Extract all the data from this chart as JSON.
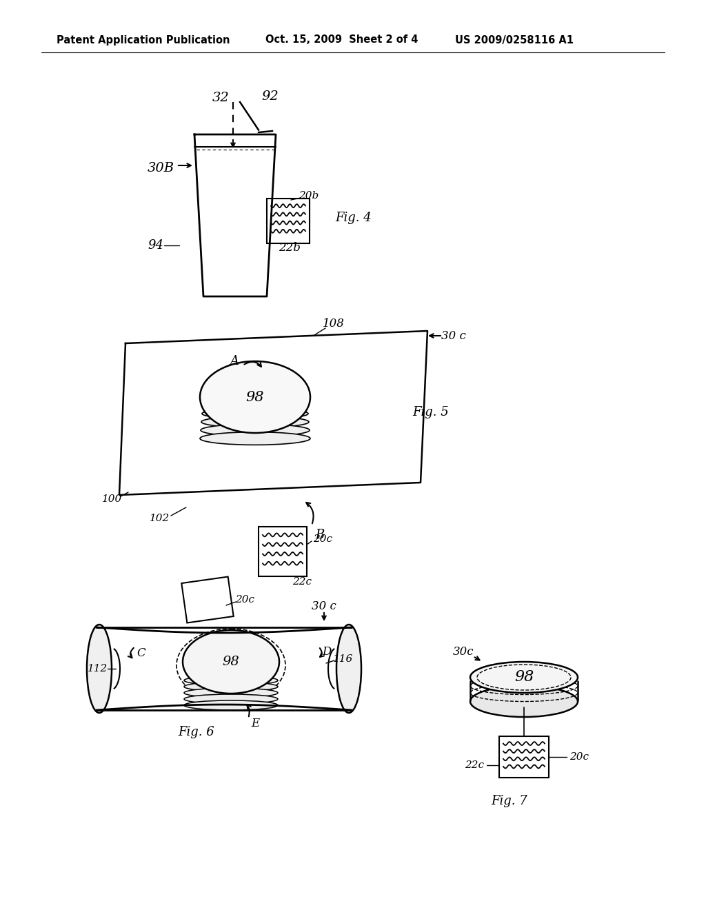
{
  "bg_color": "#ffffff",
  "header_text": "Patent Application Publication",
  "header_date": "Oct. 15, 2009  Sheet 2 of 4",
  "header_patent": "US 2009/0258116 A1",
  "fig4_label": "Fig. 4",
  "fig5_label": "Fig. 5",
  "fig6_label": "Fig. 6",
  "fig7_label": "Fig. 7"
}
